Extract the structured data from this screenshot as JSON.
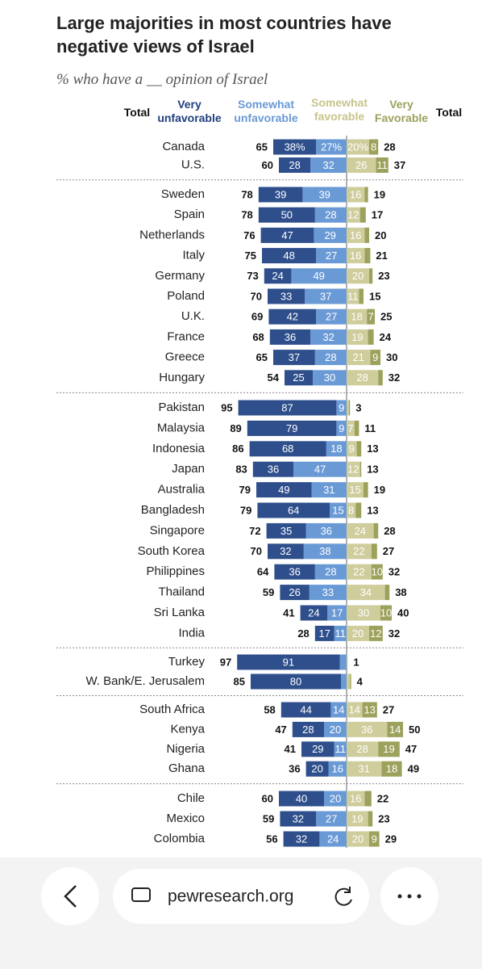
{
  "chart_data": {
    "type": "diverging_bar",
    "title": "Large majorities in most countries have negative views of Israel",
    "subtitle": "% who have a __ opinion of Israel",
    "categories": [
      "Canada",
      "U.S.",
      "Sweden",
      "Spain",
      "Netherlands",
      "Italy",
      "Germany",
      "Poland",
      "U.K.",
      "France",
      "Greece",
      "Hungary",
      "Pakistan",
      "Malaysia",
      "Indonesia",
      "Japan",
      "Australia",
      "Bangladesh",
      "Singapore",
      "South Korea",
      "Philippines",
      "Thailand",
      "Sri Lanka",
      "India",
      "Turkey",
      "W. Bank/E. Jerusalem",
      "South Africa",
      "Kenya",
      "Nigeria",
      "Ghana",
      "Chile",
      "Mexico",
      "Colombia"
    ],
    "series": [
      {
        "name": "Very unfavorable",
        "color": "#2e4f8c",
        "side": "negative",
        "values": [
          38,
          28,
          39,
          50,
          47,
          48,
          24,
          33,
          42,
          36,
          37,
          25,
          87,
          79,
          68,
          36,
          49,
          64,
          35,
          32,
          36,
          26,
          24,
          17,
          91,
          80,
          44,
          28,
          29,
          20,
          40,
          32,
          32
        ],
        "value_labels": [
          "38%",
          "28",
          "39",
          "50",
          "47",
          "48",
          "24",
          "33",
          "42",
          "36",
          "37",
          "25",
          "87",
          "79",
          "68",
          "36",
          "49",
          "64",
          "35",
          "32",
          "36",
          "26",
          "24",
          "17",
          "91",
          "80",
          "44",
          "28",
          "29",
          "20",
          "40",
          "32",
          "32"
        ]
      },
      {
        "name": "Somewhat unfavorable",
        "color": "#6a9ad6",
        "side": "negative",
        "values": [
          27,
          32,
          39,
          28,
          29,
          27,
          49,
          37,
          27,
          32,
          28,
          30,
          9,
          9,
          18,
          47,
          31,
          15,
          36,
          38,
          28,
          33,
          17,
          11,
          6,
          5,
          14,
          20,
          11,
          16,
          20,
          27,
          24
        ],
        "value_labels": [
          "27%",
          "32",
          "39",
          "28",
          "29",
          "27",
          "49",
          "37",
          "27",
          "32",
          "28",
          "30",
          "9",
          "9",
          "18",
          "47",
          "31",
          "15",
          "36",
          "38",
          "28",
          "33",
          "17",
          "11",
          null,
          null,
          "14",
          "20",
          "11",
          "16",
          "20",
          "27",
          "24"
        ]
      },
      {
        "name": "Somewhat favorable",
        "color": "#cfcd9c",
        "side": "positive",
        "values": [
          20,
          26,
          16,
          12,
          16,
          16,
          20,
          11,
          18,
          19,
          21,
          28,
          2,
          7,
          9,
          12,
          15,
          8,
          24,
          22,
          22,
          34,
          30,
          20,
          1,
          3,
          14,
          36,
          28,
          31,
          16,
          19,
          20
        ],
        "value_labels": [
          "20%",
          "26",
          "16",
          "12",
          "16",
          "16",
          "20",
          "11",
          "18",
          "19",
          "21",
          "28",
          null,
          "7",
          "9",
          "12",
          "15",
          "8",
          "24",
          "22",
          "22",
          "34",
          "30",
          "20",
          null,
          null,
          "14",
          "36",
          "28",
          "31",
          "16",
          "19",
          "20"
        ]
      },
      {
        "name": "Very Favorable",
        "color": "#9ca15c",
        "side": "positive",
        "values": [
          8,
          11,
          3,
          5,
          4,
          5,
          3,
          4,
          7,
          5,
          9,
          4,
          1,
          4,
          4,
          1,
          4,
          5,
          4,
          5,
          10,
          4,
          10,
          12,
          0,
          1,
          13,
          14,
          19,
          18,
          6,
          4,
          9
        ],
        "value_labels": [
          "8",
          "11",
          null,
          null,
          null,
          null,
          null,
          null,
          "7",
          null,
          "9",
          null,
          null,
          null,
          null,
          null,
          null,
          null,
          null,
          null,
          "10",
          null,
          "10",
          "12",
          null,
          null,
          "13",
          "14",
          "19",
          "18",
          null,
          null,
          "9"
        ]
      }
    ],
    "totals": [
      {
        "name": "Total",
        "side": "negative",
        "values": [
          65,
          60,
          78,
          78,
          76,
          75,
          73,
          70,
          69,
          68,
          65,
          54,
          95,
          89,
          86,
          83,
          79,
          79,
          72,
          70,
          64,
          59,
          41,
          28,
          97,
          85,
          58,
          47,
          41,
          36,
          60,
          59,
          56
        ]
      },
      {
        "name": "Total",
        "side": "positive",
        "values": [
          28,
          37,
          19,
          17,
          20,
          21,
          23,
          15,
          25,
          24,
          30,
          32,
          3,
          11,
          13,
          13,
          19,
          13,
          28,
          27,
          32,
          38,
          40,
          32,
          1,
          4,
          27,
          50,
          47,
          49,
          22,
          23,
          29
        ]
      }
    ]
  },
  "browser_bar": {
    "url": "pewresearch.org"
  }
}
